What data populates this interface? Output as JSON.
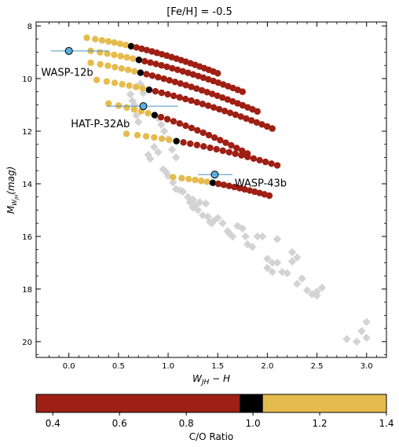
{
  "chart_data": {
    "type": "scatter",
    "title": "[Fe/H] = -0.5",
    "xlabel": "W_{JH} - H",
    "ylabel": "M_{W_{JH}} (mag)",
    "xlim": [
      -0.33,
      3.2
    ],
    "ylim": [
      20.6,
      7.85
    ],
    "y_inverted": true,
    "x_major_ticks": [
      0.0,
      0.5,
      1.0,
      1.5,
      2.0,
      2.5,
      3.0
    ],
    "x_tick_labels": [
      "0.0",
      "0.5",
      "1.0",
      "1.5",
      "2.0",
      "2.5",
      "3.0"
    ],
    "y_major_ticks": [
      8,
      10,
      12,
      14,
      16,
      18,
      20
    ],
    "y_tick_labels": [
      "8",
      "10",
      "12",
      "14",
      "16",
      "18",
      "20"
    ],
    "colors": {
      "low_co": "#9e1f14",
      "solar_co": "#000000",
      "high_co": "#e6bb4e",
      "field": "#d3d3d3",
      "planet": "#5aafdf",
      "errorbar": "#4a93c4"
    },
    "colorbar": {
      "label": "C/O Ratio",
      "range": [
        0.35,
        1.4
      ],
      "ticks": [
        0.4,
        0.6,
        0.8,
        1.0,
        1.2,
        1.4
      ],
      "tick_labels": [
        "0.4",
        "0.6",
        "0.8",
        "1.0",
        "1.2",
        "1.4"
      ],
      "segments": [
        {
          "from": 0.35,
          "to": 0.96,
          "color": "#9e1f14"
        },
        {
          "from": 0.96,
          "to": 1.03,
          "color": "#000000"
        },
        {
          "from": 1.03,
          "to": 1.4,
          "color": "#e6bb4e"
        }
      ]
    },
    "model_tracks": [
      {
        "x0": 0.18,
        "y0": 8.45,
        "x1": 1.5,
        "y1": 9.8,
        "n_low": 18,
        "n_solar": 1,
        "n_high": 7
      },
      {
        "x0": 0.22,
        "y0": 8.95,
        "x1": 1.75,
        "y1": 10.5,
        "n_low": 20,
        "n_solar": 1,
        "n_high": 7
      },
      {
        "x0": 0.22,
        "y0": 9.4,
        "x1": 1.9,
        "y1": 11.25,
        "n_low": 22,
        "n_solar": 1,
        "n_high": 7
      },
      {
        "x0": 0.28,
        "y0": 10.05,
        "x1": 2.05,
        "y1": 11.9,
        "n_low": 22,
        "n_solar": 1,
        "n_high": 7
      },
      {
        "x0": 0.4,
        "y0": 10.95,
        "x1": 1.8,
        "y1": 12.85,
        "n_low": 16,
        "n_solar": 1,
        "n_high": 6
      },
      {
        "x0": 0.58,
        "y0": 12.1,
        "x1": 2.1,
        "y1": 13.3,
        "n_low": 16,
        "n_solar": 1,
        "n_high": 6
      },
      {
        "x0": 1.05,
        "y0": 13.75,
        "x1": 2.02,
        "y1": 14.45,
        "n_low": 11,
        "n_solar": 1,
        "n_high": 6
      }
    ],
    "field_objects": {
      "x": [
        0.72,
        0.75,
        0.68,
        0.7,
        0.9,
        0.93,
        0.96,
        1.0,
        1.04,
        1.08,
        0.62,
        0.64,
        0.66,
        0.8,
        0.82,
        0.86,
        0.9,
        0.95,
        0.98,
        1.0,
        1.05,
        1.08,
        1.12,
        1.15,
        1.2,
        1.25,
        1.22,
        1.25,
        1.28,
        1.3,
        1.32,
        1.35,
        1.38,
        1.4,
        1.42,
        1.44,
        1.46,
        1.5,
        1.55,
        1.6,
        1.62,
        1.65,
        1.7,
        1.75,
        1.78,
        1.8,
        1.85,
        1.9,
        1.95,
        2.0,
        2.05,
        2.1,
        2.0,
        2.05,
        2.1,
        2.15,
        2.2,
        2.25,
        2.25,
        2.3,
        2.3,
        2.35,
        2.4,
        2.45,
        2.5,
        2.55,
        2.5,
        2.8,
        2.9,
        2.95,
        3.0,
        3.0
      ],
      "y": [
        10.2,
        10.55,
        11.4,
        11.65,
        11.5,
        11.75,
        12.0,
        12.3,
        12.7,
        13.0,
        10.6,
        10.85,
        11.0,
        12.9,
        13.05,
        12.6,
        12.8,
        13.45,
        13.55,
        13.7,
        13.95,
        14.2,
        14.25,
        14.3,
        14.5,
        14.6,
        14.7,
        14.9,
        14.8,
        15.0,
        14.7,
        15.2,
        14.75,
        15.25,
        15.45,
        15.5,
        15.4,
        15.3,
        15.5,
        15.8,
        15.9,
        16.0,
        15.6,
        15.7,
        16.0,
        16.3,
        16.4,
        16.0,
        16.0,
        16.85,
        17.0,
        16.1,
        17.2,
        17.35,
        17.0,
        17.35,
        17.4,
        16.6,
        16.95,
        16.8,
        17.8,
        17.6,
        18.05,
        18.2,
        18.25,
        17.95,
        18.1,
        19.9,
        20.0,
        19.6,
        19.25,
        19.85
      ],
      "marker": "diamond"
    },
    "planets": [
      {
        "name": "WASP-12b",
        "x": 0.0,
        "y": 8.95,
        "xerr_low": -0.18,
        "xerr_high": 0.4
      },
      {
        "name": "HAT-P-32Ab",
        "x": 0.75,
        "y": 11.05,
        "xerr_low": 0.38,
        "xerr_high": 1.1
      },
      {
        "name": "WASP-43b",
        "x": 1.47,
        "y": 13.65,
        "xerr_low": 1.3,
        "xerr_high": 1.65
      }
    ],
    "annotations": [
      {
        "text": "WASP-12b",
        "x": -0.28,
        "y": 9.75
      },
      {
        "text": "HAT-P-32Ab",
        "x": 0.02,
        "y": 11.7
      },
      {
        "text": "WASP-43b",
        "x": 1.67,
        "y": 13.95
      }
    ]
  }
}
